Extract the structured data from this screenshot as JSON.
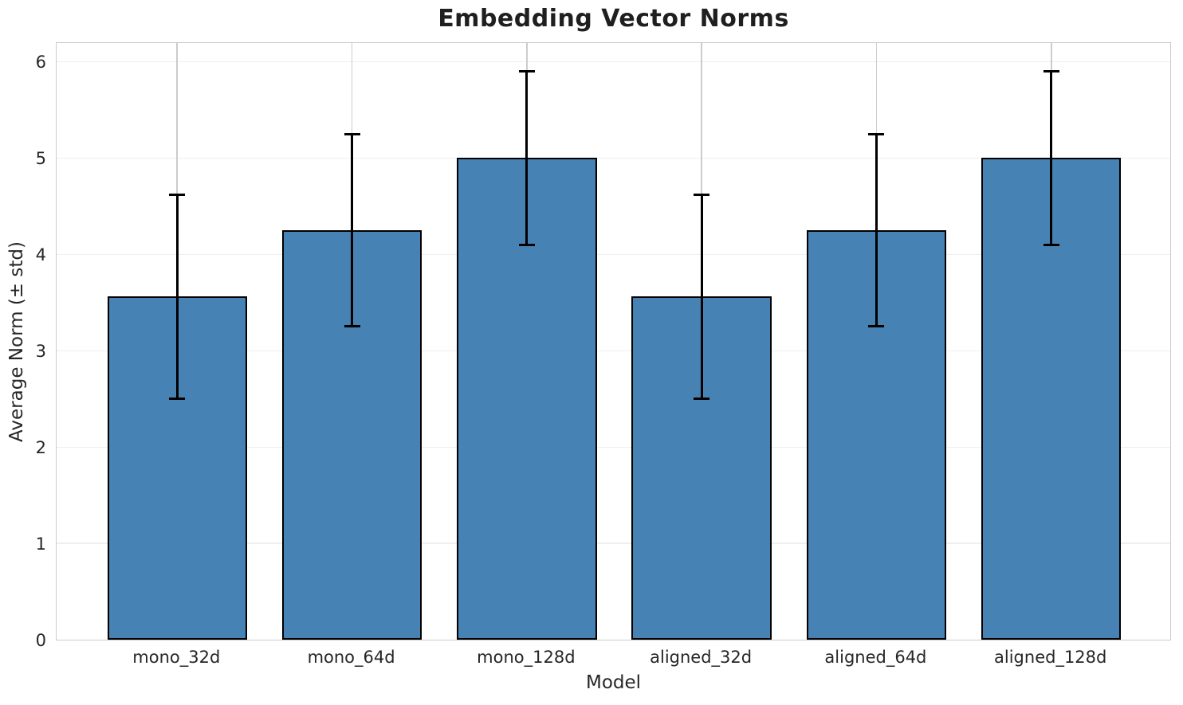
{
  "chart_data": {
    "type": "bar",
    "title": "Embedding Vector Norms",
    "xlabel": "Model",
    "ylabel": "Average Norm (± std)",
    "categories": [
      "mono_32d",
      "mono_64d",
      "mono_128d",
      "aligned_32d",
      "aligned_64d",
      "aligned_128d"
    ],
    "values": [
      3.56,
      4.25,
      5.0,
      3.56,
      4.25,
      5.0
    ],
    "errors": [
      1.06,
      1.0,
      0.9,
      1.06,
      1.0,
      0.9
    ],
    "yticks": [
      0,
      1,
      2,
      3,
      4,
      5,
      6
    ],
    "ylim": [
      0,
      6.21
    ],
    "xlim": [
      -0.69,
      5.69
    ],
    "bar_width": 0.8,
    "grid": true,
    "legend": false,
    "error_caps": true,
    "colors": {
      "bar_fill": "#4682B4",
      "bar_edge": "#000000",
      "error_bar": "#000000",
      "grid_horizontal": "#efefef",
      "grid_vertical": "#cccccc",
      "spine": "#cccccc",
      "text": "#262626",
      "background": "#ffffff"
    }
  }
}
